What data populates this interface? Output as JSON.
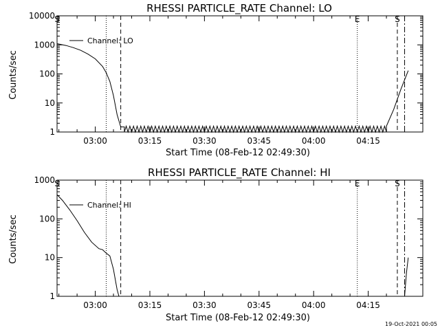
{
  "footer": {
    "timestamp": "19-Oct-2021 00:05"
  },
  "chart_data": [
    {
      "type": "line",
      "title": "RHESSI PARTICLE_RATE Channel: LO",
      "xlabel": "Start Time (08-Feb-12 02:49:30)",
      "ylabel": "Counts/sec",
      "yscale": "log",
      "xlim": [
        "02:49:30",
        "04:30:00"
      ],
      "ylim": [
        1,
        10000
      ],
      "x_ticks": [
        "03:00",
        "03:15",
        "03:30",
        "03:45",
        "04:00",
        "04:15"
      ],
      "y_ticks": [
        "1",
        "10",
        "100",
        "1000",
        "10000"
      ],
      "legend": {
        "position": "top-left",
        "label": "Channel: LO"
      },
      "markers": [
        {
          "time": "02:49:30",
          "label": "S",
          "style": "dotted"
        },
        {
          "time": "03:03:00",
          "label": "",
          "style": "dotted"
        },
        {
          "time": "03:07:00",
          "label": "",
          "style": "dashed"
        },
        {
          "time": "04:12:00",
          "label": "E",
          "style": "dotted"
        },
        {
          "time": "04:23:00",
          "label": "S",
          "style": "dashed"
        },
        {
          "time": "04:25:00",
          "label": "",
          "style": "dashdot"
        }
      ],
      "series": [
        {
          "name": "Channel: LO",
          "points": [
            [
              "02:49:30",
              1100
            ],
            [
              "02:52:00",
              950
            ],
            [
              "02:54:00",
              800
            ],
            [
              "02:56:00",
              650
            ],
            [
              "02:58:00",
              480
            ],
            [
              "03:00:00",
              330
            ],
            [
              "03:02:00",
              180
            ],
            [
              "03:03:00",
              110
            ],
            [
              "03:04:00",
              55
            ],
            [
              "03:05:00",
              18
            ],
            [
              "03:06:00",
              4
            ],
            [
              "03:07:00",
              1.5
            ],
            [
              "03:08:00",
              1.5
            ]
          ],
          "noise": {
            "from": "03:08:00",
            "to": "04:20:00",
            "low": 1,
            "high": 1.6
          },
          "tail": [
            [
              "04:20:00",
              1.6
            ],
            [
              "04:22:00",
              6
            ],
            [
              "04:24:00",
              30
            ],
            [
              "04:26:00",
              130
            ]
          ]
        }
      ]
    },
    {
      "type": "line",
      "title": "RHESSI PARTICLE_RATE Channel: HI",
      "xlabel": "Start Time (08-Feb-12 02:49:30)",
      "ylabel": "Counts/sec",
      "yscale": "log",
      "xlim": [
        "02:49:30",
        "04:30:00"
      ],
      "ylim": [
        1,
        1000
      ],
      "x_ticks": [
        "03:00",
        "03:15",
        "03:30",
        "03:45",
        "04:00",
        "04:15"
      ],
      "y_ticks": [
        "1",
        "10",
        "100",
        "1000"
      ],
      "legend": {
        "position": "top-left",
        "label": "Channel: HI"
      },
      "markers": [
        {
          "time": "02:49:30",
          "label": "S",
          "style": "dotted"
        },
        {
          "time": "03:03:00",
          "label": "",
          "style": "dotted"
        },
        {
          "time": "03:07:00",
          "label": "",
          "style": "dashed"
        },
        {
          "time": "04:12:00",
          "label": "E",
          "style": "dotted"
        },
        {
          "time": "04:23:00",
          "label": "S",
          "style": "dashed"
        },
        {
          "time": "04:25:00",
          "label": "",
          "style": "dashdot"
        }
      ],
      "series": [
        {
          "name": "Channel: HI",
          "points": [
            [
              "02:49:30",
              420
            ],
            [
              "02:51:00",
              300
            ],
            [
              "02:53:00",
              170
            ],
            [
              "02:55:00",
              90
            ],
            [
              "02:57:00",
              45
            ],
            [
              "02:59:00",
              25
            ],
            [
              "03:01:00",
              17
            ],
            [
              "03:02:00",
              16
            ],
            [
              "03:03:00",
              13
            ],
            [
              "03:04:00",
              11
            ],
            [
              "03:05:00",
              5
            ],
            [
              "03:06:00",
              1.5
            ],
            [
              "03:06:30",
              1
            ]
          ],
          "noise": null,
          "tail": [
            [
              "04:25:00",
              1
            ],
            [
              "04:25:30",
              4
            ],
            [
              "04:26:00",
              10
            ]
          ]
        }
      ]
    }
  ]
}
